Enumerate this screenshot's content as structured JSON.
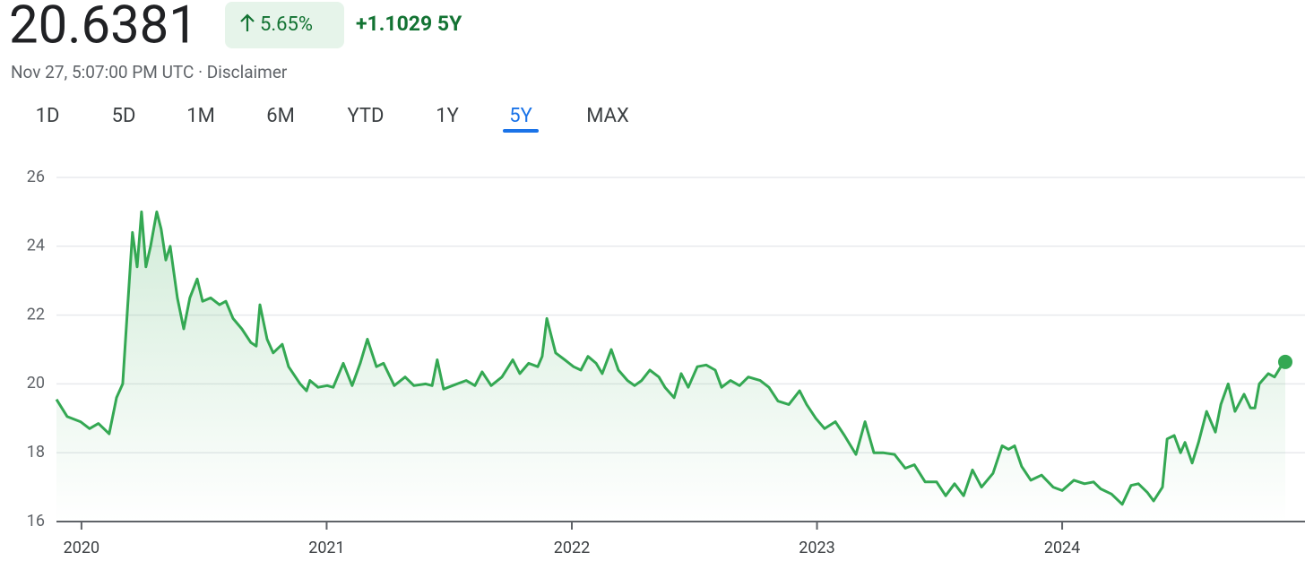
{
  "header": {
    "price": "20.6381",
    "change_pct": "5.65%",
    "change_abs": "+1.1029",
    "period": "5Y",
    "timestamp": "Nov 27, 5:07:00 PM UTC",
    "separator": "·",
    "disclaimer": "Disclaimer"
  },
  "tabs": [
    "1D",
    "5D",
    "1M",
    "6M",
    "YTD",
    "1Y",
    "5Y",
    "MAX"
  ],
  "chart_data": {
    "type": "line",
    "x": [
      2019.898,
      2019.942,
      2019.996,
      2020.033,
      2020.069,
      2020.113,
      2020.143,
      2020.168,
      2020.186,
      2020.208,
      2020.227,
      2020.245,
      2020.263,
      2020.282,
      2020.307,
      2020.325,
      2020.344,
      2020.362,
      2020.391,
      2020.417,
      2020.442,
      2020.472,
      2020.494,
      2020.527,
      2020.563,
      2020.589,
      2020.618,
      2020.654,
      2020.691,
      2020.713,
      2020.728,
      2020.757,
      2020.782,
      2020.819,
      2020.845,
      2020.892,
      2020.918,
      2020.932,
      2020.965,
      2021.002,
      2021.027,
      2021.068,
      2021.104,
      2021.137,
      2021.166,
      2021.203,
      2021.232,
      2021.276,
      2021.32,
      2021.356,
      2021.404,
      2021.43,
      2021.451,
      2021.477,
      2021.532,
      2021.569,
      2021.605,
      2021.634,
      2021.671,
      2021.715,
      2021.759,
      2021.788,
      2021.824,
      2021.861,
      2021.879,
      2021.898,
      2021.934,
      2021.971,
      2022.007,
      2022.037,
      2022.066,
      2022.099,
      2022.124,
      2022.161,
      2022.19,
      2022.227,
      2022.256,
      2022.285,
      2022.318,
      2022.355,
      2022.38,
      2022.417,
      2022.446,
      2022.475,
      2022.512,
      2022.548,
      2022.585,
      2022.611,
      2022.647,
      2022.684,
      2022.72,
      2022.768,
      2022.804,
      2022.841,
      2022.885,
      2022.929,
      2022.958,
      2022.995,
      2023.031,
      2023.075,
      2023.112,
      2023.159,
      2023.196,
      2023.232,
      2023.269,
      2023.316,
      2023.36,
      2023.397,
      2023.441,
      2023.488,
      2023.525,
      2023.561,
      2023.598,
      2023.634,
      2023.671,
      2023.718,
      2023.755,
      2023.781,
      2023.806,
      2023.835,
      2023.872,
      2023.916,
      2023.963,
      2024.0,
      2024.048,
      2024.091,
      2024.128,
      2024.157,
      2024.201,
      2024.245,
      2024.281,
      2024.311,
      2024.347,
      2024.373,
      2024.409,
      2024.428,
      2024.457,
      2024.483,
      2024.501,
      2024.53,
      2024.556,
      2024.589,
      2024.625,
      2024.647,
      2024.677,
      2024.705,
      2024.742,
      2024.768,
      2024.786,
      2024.804,
      2024.841,
      2024.866,
      2024.896,
      2024.91
    ],
    "values": [
      19.55,
      19.05,
      18.9,
      18.7,
      18.85,
      18.55,
      19.6,
      20.0,
      22.0,
      24.4,
      23.4,
      25.0,
      23.4,
      24.0,
      25.0,
      24.5,
      23.6,
      24.0,
      22.5,
      21.6,
      22.5,
      23.05,
      22.4,
      22.5,
      22.3,
      22.4,
      21.9,
      21.6,
      21.2,
      21.1,
      22.3,
      21.3,
      20.9,
      21.15,
      20.5,
      20.0,
      19.8,
      20.1,
      19.9,
      19.95,
      19.9,
      20.6,
      19.95,
      20.6,
      21.3,
      20.5,
      20.6,
      19.95,
      20.2,
      19.95,
      20.0,
      19.95,
      20.7,
      19.85,
      20.0,
      20.1,
      19.95,
      20.35,
      19.95,
      20.2,
      20.7,
      20.3,
      20.6,
      20.5,
      20.8,
      21.9,
      20.9,
      20.7,
      20.5,
      20.4,
      20.8,
      20.6,
      20.3,
      21.0,
      20.4,
      20.1,
      19.95,
      20.1,
      20.4,
      20.2,
      19.9,
      19.6,
      20.3,
      19.9,
      20.5,
      20.55,
      20.4,
      19.9,
      20.1,
      19.95,
      20.2,
      20.1,
      19.9,
      19.5,
      19.4,
      19.8,
      19.4,
      19.0,
      18.7,
      18.9,
      18.5,
      17.95,
      18.9,
      18.0,
      18.0,
      17.95,
      17.55,
      17.65,
      17.15,
      17.15,
      16.75,
      17.1,
      16.75,
      17.5,
      17.0,
      17.4,
      18.2,
      18.1,
      18.2,
      17.6,
      17.2,
      17.35,
      17.0,
      16.9,
      17.2,
      17.1,
      17.15,
      16.95,
      16.8,
      16.5,
      17.05,
      17.1,
      16.85,
      16.6,
      17.0,
      18.4,
      18.5,
      18.0,
      18.3,
      17.7,
      18.3,
      19.2,
      18.6,
      19.4,
      20.0,
      19.2,
      19.7,
      19.3,
      19.3,
      20.0,
      20.3,
      20.2,
      20.55,
      20.6381
    ],
    "color": "#34a853",
    "xlim": [
      2019.898,
      2024.91
    ],
    "xticks": [
      2020,
      2021,
      2022,
      2023,
      2024
    ],
    "ylim": [
      16,
      26
    ],
    "yticks": [
      16,
      18,
      20,
      22,
      24,
      26
    ],
    "grid": true
  }
}
